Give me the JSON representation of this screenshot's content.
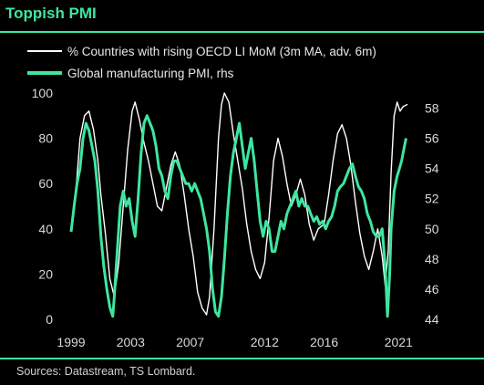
{
  "chart_data": {
    "type": "line",
    "title": "Toppish PMI",
    "xlabel": "",
    "ylabel": "",
    "x_ticks": [
      "1999",
      "2003",
      "2007",
      "2012",
      "2016",
      "2021"
    ],
    "xlim": [
      1999.0,
      2021.9
    ],
    "ylim_left": [
      0,
      100
    ],
    "ylim_right": [
      44,
      59
    ],
    "y_ticks_left": [
      0,
      20,
      40,
      60,
      80,
      100
    ],
    "y_ticks_right": [
      44,
      46,
      48,
      50,
      52,
      54,
      56,
      58
    ],
    "grid": false,
    "legend_position": "top-left",
    "series": [
      {
        "name": "% Countries with rising OECD LI MoM (3m MA, adv. 6m)",
        "axis": "left",
        "color": "#ffffff",
        "points": [
          [
            1999.0,
            40
          ],
          [
            1999.3,
            55
          ],
          [
            1999.6,
            80
          ],
          [
            1999.9,
            90
          ],
          [
            2000.2,
            92
          ],
          [
            2000.5,
            84
          ],
          [
            2000.8,
            70
          ],
          [
            2001.0,
            55
          ],
          [
            2001.3,
            38
          ],
          [
            2001.6,
            18
          ],
          [
            2001.9,
            10
          ],
          [
            2002.2,
            25
          ],
          [
            2002.5,
            50
          ],
          [
            2002.8,
            75
          ],
          [
            2003.1,
            92
          ],
          [
            2003.3,
            96
          ],
          [
            2003.6,
            88
          ],
          [
            2003.9,
            78
          ],
          [
            2004.2,
            70
          ],
          [
            2004.5,
            60
          ],
          [
            2004.8,
            50
          ],
          [
            2005.1,
            48
          ],
          [
            2005.4,
            58
          ],
          [
            2005.7,
            68
          ],
          [
            2006.0,
            74
          ],
          [
            2006.3,
            68
          ],
          [
            2006.6,
            55
          ],
          [
            2006.9,
            40
          ],
          [
            2007.2,
            28
          ],
          [
            2007.5,
            12
          ],
          [
            2007.8,
            5
          ],
          [
            2008.1,
            2
          ],
          [
            2008.3,
            10
          ],
          [
            2008.6,
            40
          ],
          [
            2008.9,
            80
          ],
          [
            2009.1,
            95
          ],
          [
            2009.3,
            100
          ],
          [
            2009.6,
            96
          ],
          [
            2009.9,
            82
          ],
          [
            2010.2,
            70
          ],
          [
            2010.5,
            58
          ],
          [
            2010.8,
            42
          ],
          [
            2011.1,
            30
          ],
          [
            2011.4,
            22
          ],
          [
            2011.7,
            18
          ],
          [
            2012.0,
            25
          ],
          [
            2012.3,
            45
          ],
          [
            2012.6,
            70
          ],
          [
            2012.9,
            80
          ],
          [
            2013.2,
            72
          ],
          [
            2013.5,
            60
          ],
          [
            2013.8,
            50
          ],
          [
            2014.1,
            55
          ],
          [
            2014.4,
            62
          ],
          [
            2014.7,
            55
          ],
          [
            2015.0,
            42
          ],
          [
            2015.3,
            35
          ],
          [
            2015.6,
            40
          ],
          [
            2016.0,
            42
          ],
          [
            2016.3,
            55
          ],
          [
            2016.6,
            70
          ],
          [
            2016.9,
            82
          ],
          [
            2017.2,
            86
          ],
          [
            2017.5,
            80
          ],
          [
            2017.8,
            68
          ],
          [
            2018.1,
            52
          ],
          [
            2018.4,
            38
          ],
          [
            2018.7,
            28
          ],
          [
            2019.0,
            22
          ],
          [
            2019.3,
            30
          ],
          [
            2019.6,
            40
          ],
          [
            2019.9,
            28
          ],
          [
            2020.1,
            15
          ],
          [
            2020.3,
            30
          ],
          [
            2020.5,
            65
          ],
          [
            2020.7,
            90
          ],
          [
            2020.9,
            96
          ],
          [
            2021.1,
            92
          ],
          [
            2021.3,
            94
          ],
          [
            2021.6,
            95
          ]
        ]
      },
      {
        "name": "Global manufacturing PMI, rhs",
        "axis": "right",
        "color": "#3ee6a0",
        "points": [
          [
            1999.0,
            49.8
          ],
          [
            1999.2,
            51.5
          ],
          [
            1999.4,
            53.0
          ],
          [
            1999.6,
            54.0
          ],
          [
            1999.8,
            56.0
          ],
          [
            2000.0,
            57.0
          ],
          [
            2000.2,
            56.5
          ],
          [
            2000.4,
            55.5
          ],
          [
            2000.6,
            54.5
          ],
          [
            2000.8,
            52.5
          ],
          [
            2001.0,
            49.5
          ],
          [
            2001.2,
            47.5
          ],
          [
            2001.4,
            46.0
          ],
          [
            2001.6,
            44.8
          ],
          [
            2001.8,
            44.2
          ],
          [
            2001.9,
            45.5
          ],
          [
            2002.1,
            48.5
          ],
          [
            2002.3,
            51.5
          ],
          [
            2002.5,
            52.5
          ],
          [
            2002.7,
            51.5
          ],
          [
            2002.9,
            52.0
          ],
          [
            2003.1,
            50.5
          ],
          [
            2003.3,
            49.5
          ],
          [
            2003.5,
            52.0
          ],
          [
            2003.7,
            55.0
          ],
          [
            2003.9,
            57.0
          ],
          [
            2004.1,
            57.5
          ],
          [
            2004.3,
            57.0
          ],
          [
            2004.5,
            56.5
          ],
          [
            2004.7,
            55.5
          ],
          [
            2004.9,
            54.0
          ],
          [
            2005.1,
            53.5
          ],
          [
            2005.3,
            52.5
          ],
          [
            2005.5,
            52.0
          ],
          [
            2005.7,
            53.5
          ],
          [
            2005.9,
            54.5
          ],
          [
            2006.1,
            54.5
          ],
          [
            2006.3,
            54.0
          ],
          [
            2006.5,
            53.5
          ],
          [
            2006.7,
            53.0
          ],
          [
            2006.9,
            53.0
          ],
          [
            2007.1,
            52.5
          ],
          [
            2007.3,
            53.0
          ],
          [
            2007.5,
            52.5
          ],
          [
            2007.7,
            52.0
          ],
          [
            2007.9,
            51.0
          ],
          [
            2008.1,
            50.0
          ],
          [
            2008.3,
            48.5
          ],
          [
            2008.5,
            46.0
          ],
          [
            2008.7,
            44.5
          ],
          [
            2008.9,
            44.2
          ],
          [
            2009.1,
            45.5
          ],
          [
            2009.3,
            48.0
          ],
          [
            2009.5,
            51.0
          ],
          [
            2009.7,
            53.5
          ],
          [
            2009.9,
            55.0
          ],
          [
            2010.1,
            56.0
          ],
          [
            2010.3,
            57.0
          ],
          [
            2010.5,
            55.5
          ],
          [
            2010.7,
            54.0
          ],
          [
            2010.9,
            55.0
          ],
          [
            2011.1,
            56.0
          ],
          [
            2011.3,
            54.5
          ],
          [
            2011.5,
            52.5
          ],
          [
            2011.7,
            50.5
          ],
          [
            2011.9,
            49.5
          ],
          [
            2012.1,
            50.5
          ],
          [
            2012.3,
            50.0
          ],
          [
            2012.5,
            48.5
          ],
          [
            2012.7,
            48.5
          ],
          [
            2012.9,
            49.5
          ],
          [
            2013.1,
            50.5
          ],
          [
            2013.3,
            50.0
          ],
          [
            2013.5,
            51.0
          ],
          [
            2013.7,
            51.5
          ],
          [
            2013.9,
            52.0
          ],
          [
            2014.1,
            52.5
          ],
          [
            2014.3,
            51.5
          ],
          [
            2014.5,
            52.0
          ],
          [
            2014.7,
            51.5
          ],
          [
            2014.9,
            51.5
          ],
          [
            2015.1,
            51.0
          ],
          [
            2015.3,
            50.5
          ],
          [
            2015.5,
            50.8
          ],
          [
            2015.7,
            50.3
          ],
          [
            2015.9,
            50.5
          ],
          [
            2016.1,
            50.0
          ],
          [
            2016.3,
            50.5
          ],
          [
            2016.5,
            50.8
          ],
          [
            2016.7,
            51.5
          ],
          [
            2016.9,
            52.5
          ],
          [
            2017.1,
            52.8
          ],
          [
            2017.3,
            53.0
          ],
          [
            2017.5,
            53.5
          ],
          [
            2017.7,
            54.0
          ],
          [
            2017.9,
            54.3
          ],
          [
            2018.1,
            53.5
          ],
          [
            2018.3,
            52.8
          ],
          [
            2018.5,
            52.5
          ],
          [
            2018.7,
            52.0
          ],
          [
            2018.9,
            51.0
          ],
          [
            2019.1,
            50.5
          ],
          [
            2019.3,
            49.8
          ],
          [
            2019.5,
            49.5
          ],
          [
            2019.7,
            49.5
          ],
          [
            2019.9,
            50.0
          ],
          [
            2020.1,
            47.5
          ],
          [
            2020.25,
            44.2
          ],
          [
            2020.4,
            47.0
          ],
          [
            2020.5,
            50.0
          ],
          [
            2020.7,
            52.5
          ],
          [
            2020.9,
            53.5
          ],
          [
            2021.0,
            53.8
          ],
          [
            2021.2,
            54.5
          ],
          [
            2021.4,
            55.5
          ],
          [
            2021.5,
            56.0
          ]
        ]
      }
    ]
  },
  "source": "Sources: Datastream, TS Lombard."
}
